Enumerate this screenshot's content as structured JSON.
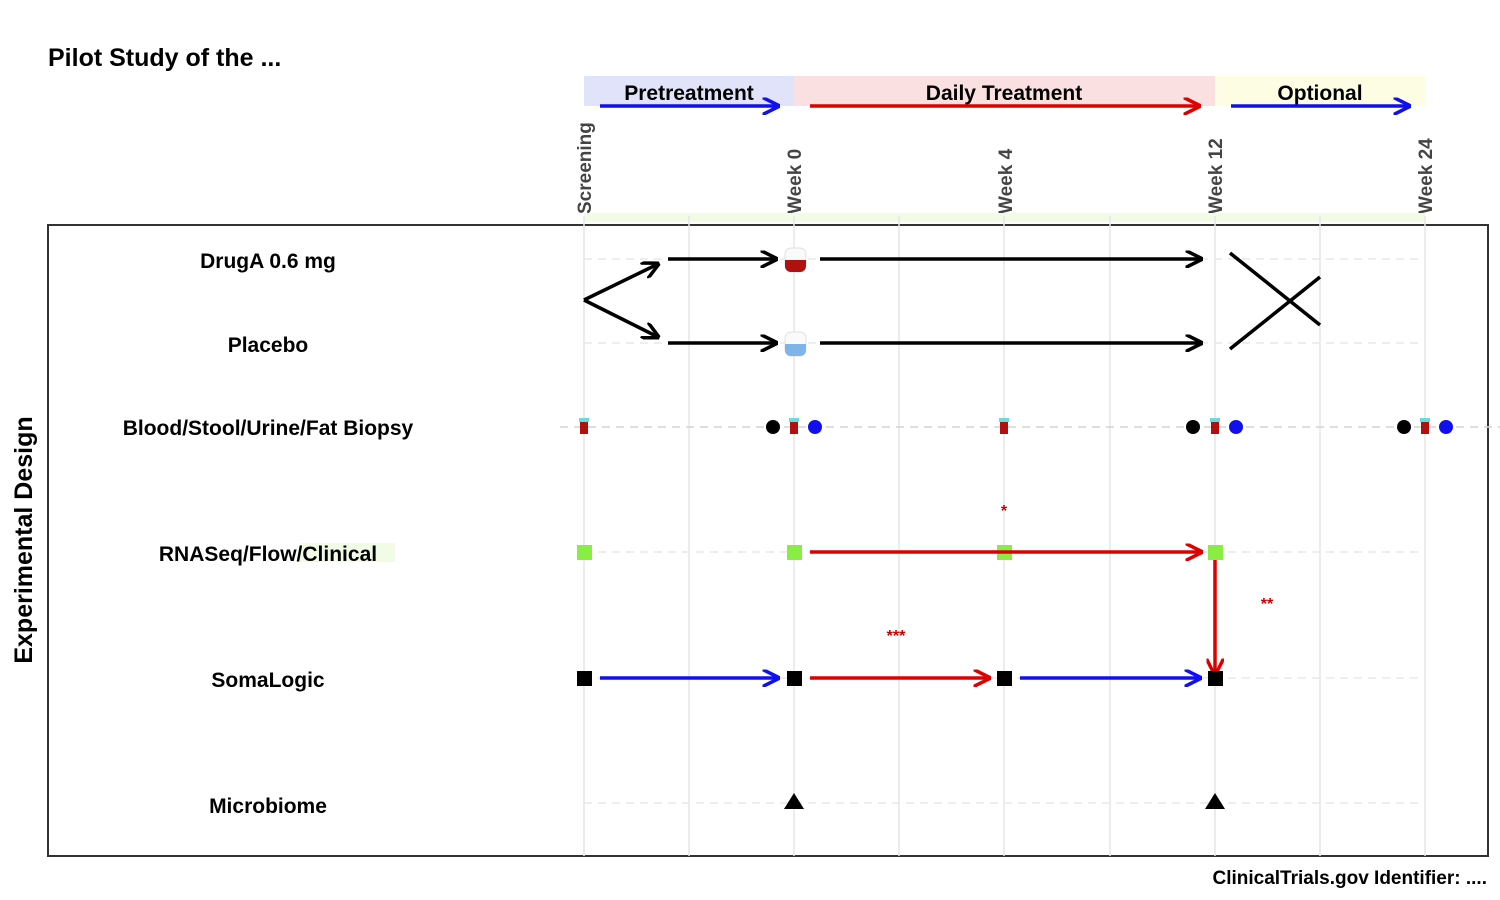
{
  "title": "Pilot Study of the ...",
  "footer": "ClinicalTrials.gov Identifier: ....",
  "y_axis_label": "Experimental Design",
  "phases": [
    {
      "label": "Pretreatment",
      "band_color": "#e0e3fa",
      "arrow_color": "#1010ee"
    },
    {
      "label": "Daily Treatment",
      "band_color": "#fae0e0",
      "arrow_color": "#dd0000"
    },
    {
      "label": "Optional",
      "band_color": "#fdfde4",
      "arrow_color": "#1010ee"
    }
  ],
  "timepoints": [
    "Screening",
    "Week 0",
    "Week 4",
    "Week 12",
    "Week 24"
  ],
  "rows": [
    {
      "label": "DrugA 0.6 mg"
    },
    {
      "label": "Placebo"
    },
    {
      "label": "Blood/Stool/Urine/Fat Biopsy"
    },
    {
      "label": "RNASeq/Flow/Clinical"
    },
    {
      "label": "SomaLogic"
    },
    {
      "label": "Microbiome"
    }
  ],
  "significance": [
    "*",
    "**",
    "***"
  ],
  "colors": {
    "blue": "#1010ee",
    "red": "#dd0000",
    "green": "#88ee44",
    "black": "#000000",
    "drug_fill": "#b01010",
    "placebo_fill": "#7fb4e8"
  }
}
